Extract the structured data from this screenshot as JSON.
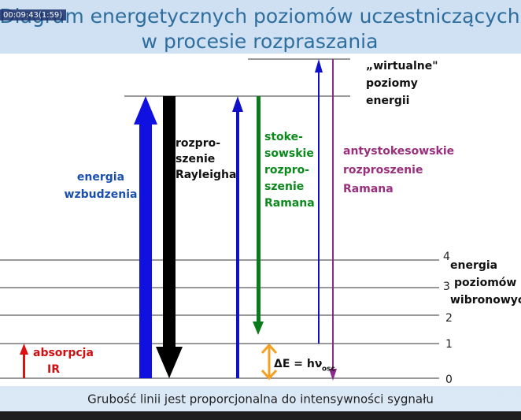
{
  "overlay": "00:09:43(1:59)",
  "title": {
    "line1": "Diagram energetycznych poziomów uczestniczących",
    "line2": "w procesie rozpraszania"
  },
  "virtual_levels": {
    "line1": "„wirtualne\"",
    "line2": "poziomy",
    "line3": "energii"
  },
  "vibronic_levels": {
    "ticks": [
      "4",
      "3",
      "2",
      "1",
      "0"
    ],
    "line1": "energia",
    "line2": "poziomów",
    "line3": "wibronowych"
  },
  "labels": {
    "excitation": [
      "energia",
      "wzbudzenia"
    ],
    "rayleigh": [
      "rozpro-",
      "szenie",
      "Rayleigha"
    ],
    "stokes": [
      "stoke-",
      "sowskie",
      "rozpro-",
      "szenie",
      "Ramana"
    ],
    "antistokes": [
      "antystokesowskie",
      "rozproszenie",
      "Ramana"
    ],
    "ir": [
      "absorpcja",
      "IR"
    ],
    "delta_e": {
      "main": "ΔE = hν",
      "sub": "osc"
    }
  },
  "caption": "Grubość linii jest proporcjonalna do intensywności sygnału"
}
